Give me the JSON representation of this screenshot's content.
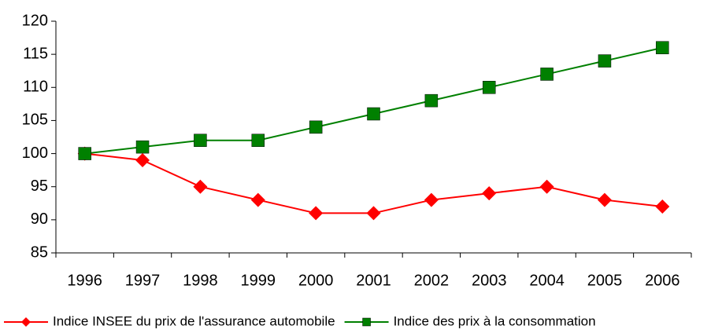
{
  "chart_data": {
    "type": "line",
    "categories": [
      "1996",
      "1997",
      "1998",
      "1999",
      "2000",
      "2001",
      "2002",
      "2003",
      "2004",
      "2005",
      "2006"
    ],
    "series": [
      {
        "name": "Indice INSEE du prix de l'assurance automobile",
        "color": "#ff0000",
        "marker": "diamond",
        "values": [
          100,
          99,
          95,
          93,
          91,
          91,
          93,
          94,
          95,
          93,
          92
        ]
      },
      {
        "name": "Indice des prix à la consommation",
        "color": "#008000",
        "marker": "square",
        "values": [
          100,
          101,
          102,
          102,
          104,
          106,
          108,
          110,
          112,
          114,
          116
        ]
      }
    ],
    "ylim": [
      85,
      120
    ],
    "yticks": [
      85,
      90,
      95,
      100,
      105,
      110,
      115,
      120
    ],
    "legend": "bottom",
    "grid": false
  }
}
